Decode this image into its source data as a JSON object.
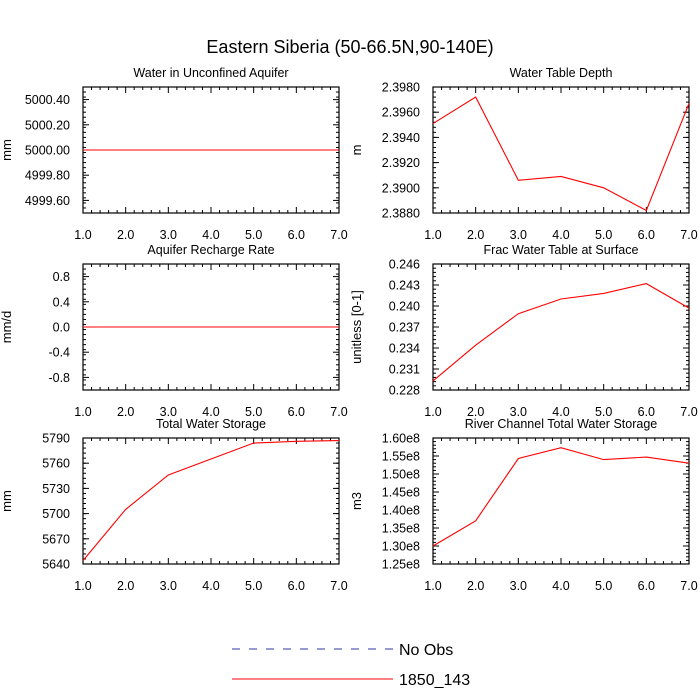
{
  "figure_title": "Eastern Siberia (50-66.5N,90-140E)",
  "colors": {
    "model": "#ff0000",
    "obs": "#3333aa",
    "axis": "#000000"
  },
  "legend": {
    "obs_label": "No Obs",
    "model_label": "1850_143"
  },
  "chart_data": [
    {
      "type": "line",
      "title": "Water in Unconfined Aquifer",
      "ylabel": "mm",
      "xlim": [
        1.0,
        7.0
      ],
      "x_ticks": [
        "1.0",
        "2.0",
        "3.0",
        "4.0",
        "5.0",
        "6.0",
        "7.0"
      ],
      "ylim": [
        4999.5,
        5000.5
      ],
      "y_ticks": [
        4999.6,
        4999.8,
        5000.0,
        5000.2,
        5000.4
      ],
      "y_tick_labels": [
        "4999.60",
        "4999.80",
        "5000.00",
        "5000.20",
        "5000.40"
      ],
      "y_minor_step": 0.04,
      "series": [
        {
          "name": "1850_143",
          "x": [
            1,
            2,
            3,
            4,
            5,
            6,
            7
          ],
          "y": [
            5000.0,
            5000.0,
            5000.0,
            5000.0,
            5000.0,
            5000.0,
            5000.0
          ]
        }
      ]
    },
    {
      "type": "line",
      "title": "Water Table Depth",
      "ylabel": "m",
      "xlim": [
        1.0,
        7.0
      ],
      "x_ticks": [
        "1.0",
        "2.0",
        "3.0",
        "4.0",
        "5.0",
        "6.0",
        "7.0"
      ],
      "ylim": [
        2.388,
        2.398
      ],
      "y_ticks": [
        2.388,
        2.39,
        2.392,
        2.394,
        2.396,
        2.398
      ],
      "y_tick_labels": [
        "2.3880",
        "2.3900",
        "2.3920",
        "2.3940",
        "2.3960",
        "2.3980"
      ],
      "y_minor_step": 0.0004,
      "series": [
        {
          "name": "1850_143",
          "x": [
            1,
            2,
            3,
            4,
            5,
            6,
            7
          ],
          "y": [
            2.3951,
            2.3972,
            2.3906,
            2.3909,
            2.39,
            2.3882,
            2.3967
          ]
        }
      ]
    },
    {
      "type": "line",
      "title": "Aquifer Recharge Rate",
      "ylabel": "mm/d",
      "xlim": [
        1.0,
        7.0
      ],
      "x_ticks": [
        "1.0",
        "2.0",
        "3.0",
        "4.0",
        "5.0",
        "6.0",
        "7.0"
      ],
      "ylim": [
        -1.0,
        1.0
      ],
      "y_ticks": [
        -0.8,
        -0.4,
        0.0,
        0.4,
        0.8
      ],
      "y_tick_labels": [
        "-0.8",
        "-0.4",
        "0.0",
        "0.4",
        "0.8"
      ],
      "y_minor_step": 0.08,
      "series": [
        {
          "name": "1850_143",
          "x": [
            1,
            2,
            3,
            4,
            5,
            6,
            7
          ],
          "y": [
            0,
            0,
            0,
            0,
            0,
            0,
            0
          ]
        }
      ]
    },
    {
      "type": "line",
      "title": "Frac Water Table at Surface",
      "ylabel": "unitless [0-1]",
      "xlim": [
        1.0,
        7.0
      ],
      "x_ticks": [
        "1.0",
        "2.0",
        "3.0",
        "4.0",
        "5.0",
        "6.0",
        "7.0"
      ],
      "ylim": [
        0.228,
        0.246
      ],
      "y_ticks": [
        0.228,
        0.231,
        0.234,
        0.237,
        0.24,
        0.243,
        0.246
      ],
      "y_tick_labels": [
        "0.228",
        "0.231",
        "0.234",
        "0.237",
        "0.240",
        "0.243",
        "0.246"
      ],
      "y_minor_step": 0.0006,
      "series": [
        {
          "name": "1850_143",
          "x": [
            1,
            2,
            3,
            4,
            5,
            6,
            7
          ],
          "y": [
            0.2293,
            0.2344,
            0.2389,
            0.241,
            0.2418,
            0.2432,
            0.2397
          ]
        }
      ]
    },
    {
      "type": "line",
      "title": "Total Water Storage",
      "ylabel": "mm",
      "xlim": [
        1.0,
        7.0
      ],
      "x_ticks": [
        "1.0",
        "2.0",
        "3.0",
        "4.0",
        "5.0",
        "6.0",
        "7.0"
      ],
      "ylim": [
        5640,
        5790
      ],
      "y_ticks": [
        5640,
        5670,
        5700,
        5730,
        5760,
        5790
      ],
      "y_tick_labels": [
        "5640",
        "5670",
        "5700",
        "5730",
        "5760",
        "5790"
      ],
      "y_minor_step": 6,
      "series": [
        {
          "name": "1850_143",
          "x": [
            1,
            2,
            3,
            4,
            5,
            6,
            7
          ],
          "y": [
            5644,
            5705,
            5746,
            5765,
            5784,
            5786,
            5787
          ]
        }
      ]
    },
    {
      "type": "line",
      "title": "River Channel Total Water Storage",
      "ylabel": "m3",
      "xlim": [
        1.0,
        7.0
      ],
      "x_ticks": [
        "1.0",
        "2.0",
        "3.0",
        "4.0",
        "5.0",
        "6.0",
        "7.0"
      ],
      "ylim": [
        125000000,
        160000000
      ],
      "y_ticks": [
        125000000,
        130000000,
        135000000,
        140000000,
        145000000,
        150000000,
        155000000,
        160000000
      ],
      "y_tick_labels": [
        "1.25e8",
        "1.30e8",
        "1.35e8",
        "1.40e8",
        "1.45e8",
        "1.50e8",
        "1.55e8",
        "1.60e8"
      ],
      "y_minor_step": 1000000,
      "series": [
        {
          "name": "1850_143",
          "x": [
            1,
            2,
            3,
            4,
            5,
            6,
            7
          ],
          "y": [
            130000000,
            137000000,
            154300000,
            157300000,
            154000000,
            154700000,
            153000000
          ]
        }
      ]
    }
  ]
}
